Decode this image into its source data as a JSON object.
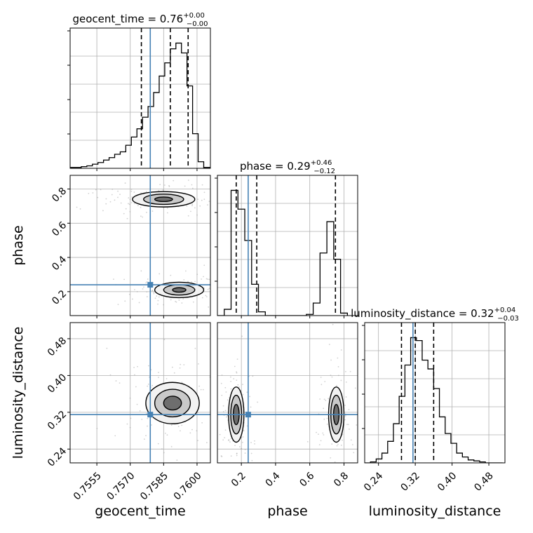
{
  "chart_data": {
    "type": "corner",
    "parameters": [
      "geocent_time",
      "phase",
      "luminosity_distance"
    ],
    "axis_labels": {
      "geocent_time": "geocent_time",
      "phase": "phase",
      "luminosity_distance": "luminosity_distance"
    },
    "ranges": {
      "geocent_time": [
        0.7543,
        0.7606
      ],
      "phase": [
        0.06,
        0.88
      ],
      "luminosity_distance": [
        0.21,
        0.515
      ]
    },
    "ticks": {
      "geocent_time": [
        0.7555,
        0.757,
        0.7585,
        0.76
      ],
      "phase": [
        0.2,
        0.4,
        0.6,
        0.8
      ],
      "luminosity_distance": [
        0.24,
        0.32,
        0.4,
        0.48
      ]
    },
    "tick_labels": {
      "geocent_time": [
        "0.7555",
        "0.7570",
        "0.7585",
        "0.7600"
      ],
      "phase": [
        "0.2",
        "0.4",
        "0.6",
        "0.8"
      ],
      "luminosity_distance": [
        "0.24",
        "0.32",
        "0.40",
        "0.48"
      ]
    },
    "titles": {
      "geocent_time": {
        "main": "geocent_time = 0.76",
        "plus": "+0.00",
        "minus": "−0.00"
      },
      "phase": {
        "main": "phase = 0.29",
        "plus": "+0.46",
        "minus": "−0.12"
      },
      "luminosity_distance": {
        "main": "luminosity_distance = 0.32",
        "plus": "+0.04",
        "minus": "−0.03"
      }
    },
    "quantiles": {
      "geocent_time": [
        0.7575,
        0.7588,
        0.7596
      ],
      "phase": [
        0.17,
        0.29,
        0.75
      ],
      "luminosity_distance": [
        0.29,
        0.32,
        0.36
      ]
    },
    "truths": {
      "geocent_time": 0.7579,
      "phase": 0.24,
      "luminosity_distance": 0.315
    },
    "histograms": {
      "geocent_time": {
        "edges": [
          0.7543,
          0.75455,
          0.7548,
          0.75505,
          0.7553,
          0.75555,
          0.7558,
          0.75605,
          0.7563,
          0.75655,
          0.7568,
          0.75705,
          0.7573,
          0.75755,
          0.7578,
          0.75805,
          0.7583,
          0.75855,
          0.7588,
          0.75905,
          0.7593,
          0.75955,
          0.7598,
          0.76005,
          0.7603,
          0.7606
        ],
        "counts": [
          1,
          1,
          2,
          3,
          5,
          7,
          10,
          13,
          17,
          20,
          28,
          38,
          48,
          62,
          75,
          92,
          112,
          128,
          145,
          152,
          140,
          100,
          42,
          8,
          1
        ]
      },
      "phase": {
        "edges": [
          0.06,
          0.1,
          0.14,
          0.18,
          0.22,
          0.26,
          0.3,
          0.34,
          0.38,
          0.42,
          0.46,
          0.5,
          0.54,
          0.58,
          0.62,
          0.66,
          0.7,
          0.74,
          0.78,
          0.82
        ],
        "counts": [
          0,
          5,
          100,
          85,
          60,
          25,
          3,
          0,
          0,
          0,
          0,
          0,
          0,
          1,
          10,
          50,
          75,
          45,
          2
        ]
      },
      "luminosity_distance": {
        "edges": [
          0.21,
          0.2225,
          0.235,
          0.2475,
          0.26,
          0.2725,
          0.285,
          0.2975,
          0.31,
          0.3225,
          0.335,
          0.3475,
          0.36,
          0.3725,
          0.385,
          0.3975,
          0.41,
          0.4225,
          0.435,
          0.4475,
          0.46,
          0.4725,
          0.485,
          0.4975,
          0.51
        ],
        "counts": [
          0,
          1,
          4,
          10,
          22,
          40,
          68,
          100,
          128,
          125,
          105,
          96,
          76,
          47,
          30,
          20,
          10,
          6,
          3,
          2,
          1,
          0,
          0,
          0
        ]
      }
    },
    "contours_2d": {
      "phase_vs_geocent_time": [
        {
          "cx": 0.7585,
          "cy": 0.74,
          "rx": 0.0014,
          "ry": 0.045
        },
        {
          "cx": 0.7585,
          "cy": 0.74,
          "rx": 0.0009,
          "ry": 0.03
        },
        {
          "cx": 0.7585,
          "cy": 0.74,
          "rx": 0.0004,
          "ry": 0.013
        },
        {
          "cx": 0.7592,
          "cy": 0.21,
          "rx": 0.0011,
          "ry": 0.045
        },
        {
          "cx": 0.7592,
          "cy": 0.21,
          "rx": 0.0007,
          "ry": 0.03
        },
        {
          "cx": 0.7592,
          "cy": 0.21,
          "rx": 0.0003,
          "ry": 0.013
        }
      ],
      "luminosity_distance_vs_geocent_time": [
        {
          "cx": 0.7589,
          "cy": 0.34,
          "rx": 0.0012,
          "ry": 0.045
        },
        {
          "cx": 0.7589,
          "cy": 0.34,
          "rx": 0.0008,
          "ry": 0.03
        },
        {
          "cx": 0.7589,
          "cy": 0.34,
          "rx": 0.0004,
          "ry": 0.015
        }
      ],
      "luminosity_distance_vs_phase": [
        {
          "cx": 0.17,
          "cy": 0.315,
          "rx": 0.045,
          "ry": 0.06
        },
        {
          "cx": 0.17,
          "cy": 0.315,
          "rx": 0.032,
          "ry": 0.042
        },
        {
          "cx": 0.17,
          "cy": 0.315,
          "rx": 0.017,
          "ry": 0.022
        },
        {
          "cx": 0.755,
          "cy": 0.315,
          "rx": 0.045,
          "ry": 0.06
        },
        {
          "cx": 0.755,
          "cy": 0.315,
          "rx": 0.032,
          "ry": 0.042
        },
        {
          "cx": 0.755,
          "cy": 0.315,
          "rx": 0.016,
          "ry": 0.022
        }
      ]
    },
    "colors": {
      "truth": "#4682b4",
      "hist": "#000000",
      "grid": "#b0b0b0",
      "quantile": "#000000"
    },
    "grid": true
  }
}
